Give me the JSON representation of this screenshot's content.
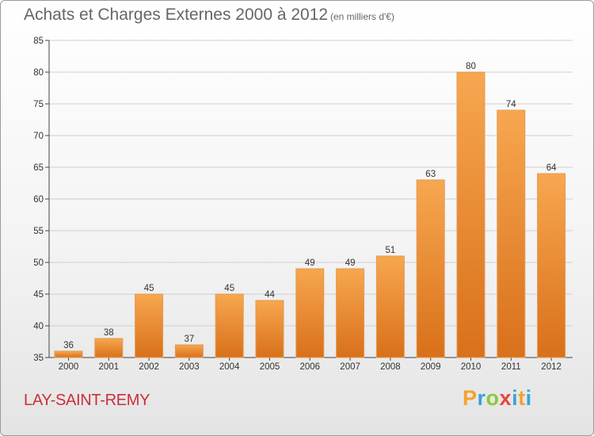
{
  "header": {
    "title": "Achats et Charges Externes 2000 à 2012",
    "unit": "(en milliers d'€)"
  },
  "footer": {
    "city": "LAY-SAINT-REMY",
    "logo_letters": [
      "P",
      "r",
      "o",
      "x",
      "i",
      "t",
      "i"
    ],
    "logo_colors": [
      "#f4a32b",
      "#3aa3d9",
      "#8dc63f",
      "#e8463c",
      "#3aa3d9",
      "#f4a32b",
      "#3aa3d9"
    ]
  },
  "chart_data": {
    "type": "bar",
    "title": "Achats et Charges Externes 2000 à 2012",
    "subtitle": "(en milliers d'€)",
    "categories": [
      "2000",
      "2001",
      "2002",
      "2003",
      "2004",
      "2005",
      "2006",
      "2007",
      "2008",
      "2009",
      "2010",
      "2011",
      "2012"
    ],
    "values": [
      36,
      38,
      45,
      37,
      45,
      44,
      49,
      49,
      51,
      63,
      80,
      74,
      64
    ],
    "ylim": [
      35,
      85
    ],
    "yticks": [
      35,
      40,
      45,
      50,
      55,
      60,
      65,
      70,
      75,
      80,
      85
    ],
    "grid": true,
    "legend": "none",
    "colors": {
      "bar_light": "#f7a750",
      "bar_dark": "#d9701a",
      "grid": "#cfcfcf"
    }
  }
}
